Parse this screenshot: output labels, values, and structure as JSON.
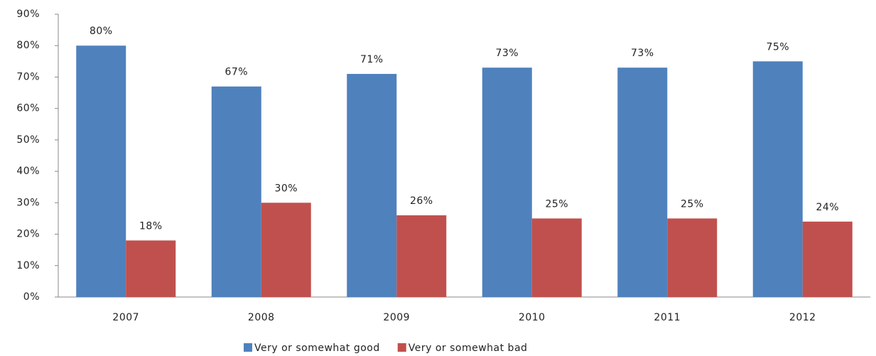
{
  "chart_data": {
    "type": "bar",
    "categories": [
      "2007",
      "2008",
      "2009",
      "2010",
      "2011",
      "2012"
    ],
    "series": [
      {
        "name": "Very or somewhat good",
        "color": "#4f81bd",
        "values": [
          80,
          67,
          71,
          73,
          73,
          75
        ],
        "value_labels": [
          "80%",
          "67%",
          "71%",
          "73%",
          "73%",
          "75%"
        ]
      },
      {
        "name": "Very or somewhat bad",
        "color": "#c0504d",
        "values": [
          18,
          30,
          26,
          25,
          25,
          24
        ],
        "value_labels": [
          "18%",
          "30%",
          "26%",
          "25%",
          "25%",
          "24%"
        ]
      }
    ],
    "ylim": [
      0,
      90
    ],
    "yticks": [
      {
        "value": 0,
        "label": "0%"
      },
      {
        "value": 10,
        "label": "10%"
      },
      {
        "value": 20,
        "label": "20%"
      },
      {
        "value": 30,
        "label": "30%"
      },
      {
        "value": 40,
        "label": "40%"
      },
      {
        "value": 50,
        "label": "50%"
      },
      {
        "value": 60,
        "label": "60%"
      },
      {
        "value": 70,
        "label": "70%"
      },
      {
        "value": 80,
        "label": "80%"
      },
      {
        "value": 90,
        "label": "90%"
      }
    ],
    "grid": false,
    "legend": "bottom"
  }
}
